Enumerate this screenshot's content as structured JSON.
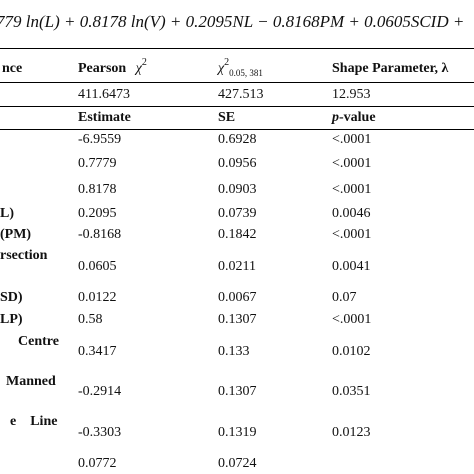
{
  "equation": "779 ln(L) + 0.8178 ln(V) + 0.2095NL − 0.8168PM + 0.0605SCID +",
  "header": {
    "col0": "nce",
    "col1": "Pearson",
    "col1_sym": "χ",
    "col1_sup": "2",
    "col2_sym": "χ",
    "col2_sup": "2",
    "col2_sub": "0.05, 381",
    "col3": "Shape Parameter, λ"
  },
  "fit_row": {
    "pearson": "411.6473",
    "critical": "427.513",
    "shape": "12.953"
  },
  "coef_header": {
    "estimate": "Estimate",
    "se": "SE",
    "p_italic": "p",
    "p_rest": "-value"
  },
  "rows": [
    {
      "label": "",
      "estimate": "-6.9559",
      "se": "0.6928",
      "p": "<.0001"
    },
    {
      "label": "",
      "estimate": "0.7779",
      "se": "0.0956",
      "p": "<.0001"
    },
    {
      "label": "",
      "estimate": "0.8178",
      "se": "0.0903",
      "p": "<.0001"
    },
    {
      "label": "L)",
      "estimate": "0.2095",
      "se": "0.0739",
      "p": "0.0046"
    },
    {
      "label": "(PM)",
      "estimate": "-0.8168",
      "se": "0.1842",
      "p": "<.0001"
    },
    {
      "label": "rsection",
      "estimate": "0.0605",
      "se": "0.0211",
      "p": "0.0041"
    },
    {
      "label": "SD)",
      "estimate": "0.0122",
      "se": "0.0067",
      "p": "0.07"
    },
    {
      "label": "LP)",
      "estimate": "0.58",
      "se": "0.1307",
      "p": "<.0001"
    },
    {
      "label": "Centre",
      "estimate": "0.3417",
      "se": "0.133",
      "p": "0.0102"
    },
    {
      "label": "Manned",
      "estimate": "-0.2914",
      "se": "0.1307",
      "p": "0.0351"
    },
    {
      "label": "e    Line",
      "estimate": "-0.3303",
      "se": "0.1319",
      "p": "0.0123"
    },
    {
      "label": "",
      "estimate": "0.0772",
      "se": "0.0724",
      "p": ""
    }
  ]
}
